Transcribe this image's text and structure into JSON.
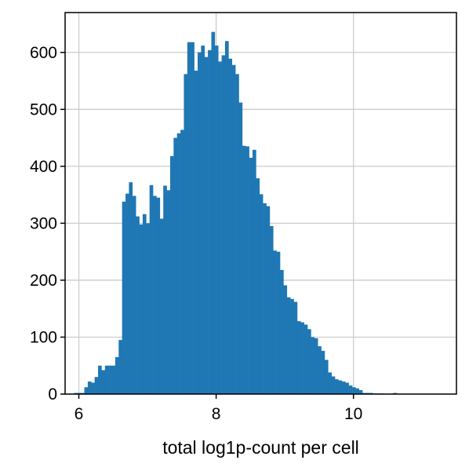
{
  "chart_data": {
    "type": "bar",
    "subtype": "histogram",
    "title": "",
    "xlabel": "total log1p-count per cell",
    "ylabel": "",
    "xlim": [
      5.8,
      11.5
    ],
    "ylim": [
      0,
      670
    ],
    "xticks": [
      6,
      8,
      10
    ],
    "yticks": [
      0,
      100,
      200,
      300,
      400,
      500,
      600
    ],
    "grid": true,
    "bar_color": "#1f77b4",
    "bin_start": 5.93,
    "bin_width": 0.05,
    "values": [
      2,
      2,
      2,
      12,
      22,
      20,
      30,
      50,
      42,
      50,
      50,
      50,
      65,
      95,
      338,
      352,
      372,
      348,
      312,
      298,
      316,
      300,
      367,
      348,
      345,
      308,
      366,
      358,
      418,
      450,
      458,
      464,
      562,
      618,
      618,
      568,
      600,
      612,
      592,
      604,
      636,
      612,
      584,
      595,
      620,
      589,
      578,
      562,
      512,
      436,
      435,
      415,
      429,
      379,
      351,
      335,
      330,
      295,
      252,
      250,
      218,
      191,
      170,
      167,
      162,
      128,
      126,
      122,
      114,
      100,
      98,
      84,
      76,
      60,
      38,
      31,
      26,
      24,
      22,
      20,
      15,
      12,
      10,
      7,
      2,
      2,
      2,
      1,
      1,
      1,
      0,
      0,
      0,
      2,
      0,
      0
    ]
  },
  "ui": {
    "bar_color": "#1f77b4",
    "grid_color": "#cccccc"
  }
}
